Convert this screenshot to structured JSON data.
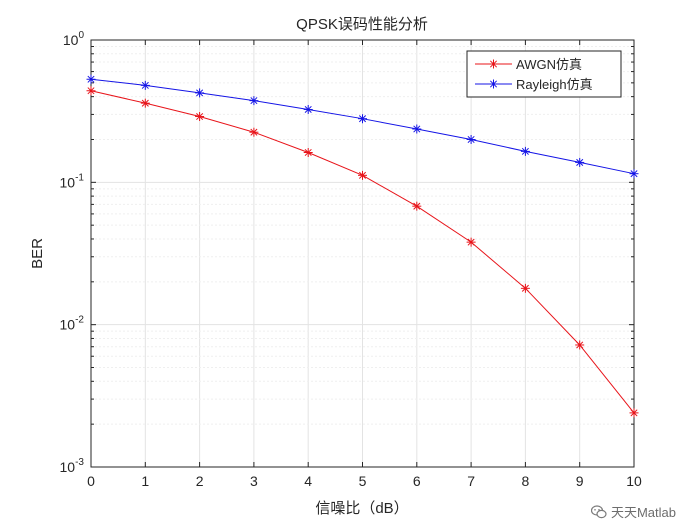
{
  "chart_data": {
    "type": "line",
    "title": "QPSK误码性能分析",
    "xlabel": "信噪比（dB）",
    "ylabel": "BER",
    "yscale": "log",
    "xlim": [
      0,
      10
    ],
    "ylim": [
      0.001,
      1
    ],
    "x": [
      0,
      1,
      2,
      3,
      4,
      5,
      6,
      7,
      8,
      9,
      10
    ],
    "x_ticks": [
      "0",
      "1",
      "2",
      "3",
      "4",
      "5",
      "6",
      "7",
      "8",
      "9",
      "10"
    ],
    "y_ticks": [
      {
        "base": "10",
        "exp": "0",
        "value": 1
      },
      {
        "base": "10",
        "exp": "-1",
        "value": 0.1
      },
      {
        "base": "10",
        "exp": "-2",
        "value": 0.01
      },
      {
        "base": "10",
        "exp": "-3",
        "value": 0.001
      }
    ],
    "grid": true,
    "legend_position": "top-right",
    "series": [
      {
        "name": "AWGN仿真",
        "color": "#e8141a",
        "marker": "asterisk",
        "values": [
          0.44,
          0.36,
          0.29,
          0.225,
          0.162,
          0.112,
          0.068,
          0.038,
          0.018,
          0.0072,
          0.0024
        ]
      },
      {
        "name": "Rayleigh仿真",
        "color": "#1414e6",
        "marker": "asterisk",
        "values": [
          0.53,
          0.48,
          0.425,
          0.375,
          0.325,
          0.28,
          0.237,
          0.2,
          0.165,
          0.138,
          0.115
        ]
      }
    ]
  },
  "watermark": {
    "text": "天天Matlab",
    "icon": "wechat-icon"
  }
}
